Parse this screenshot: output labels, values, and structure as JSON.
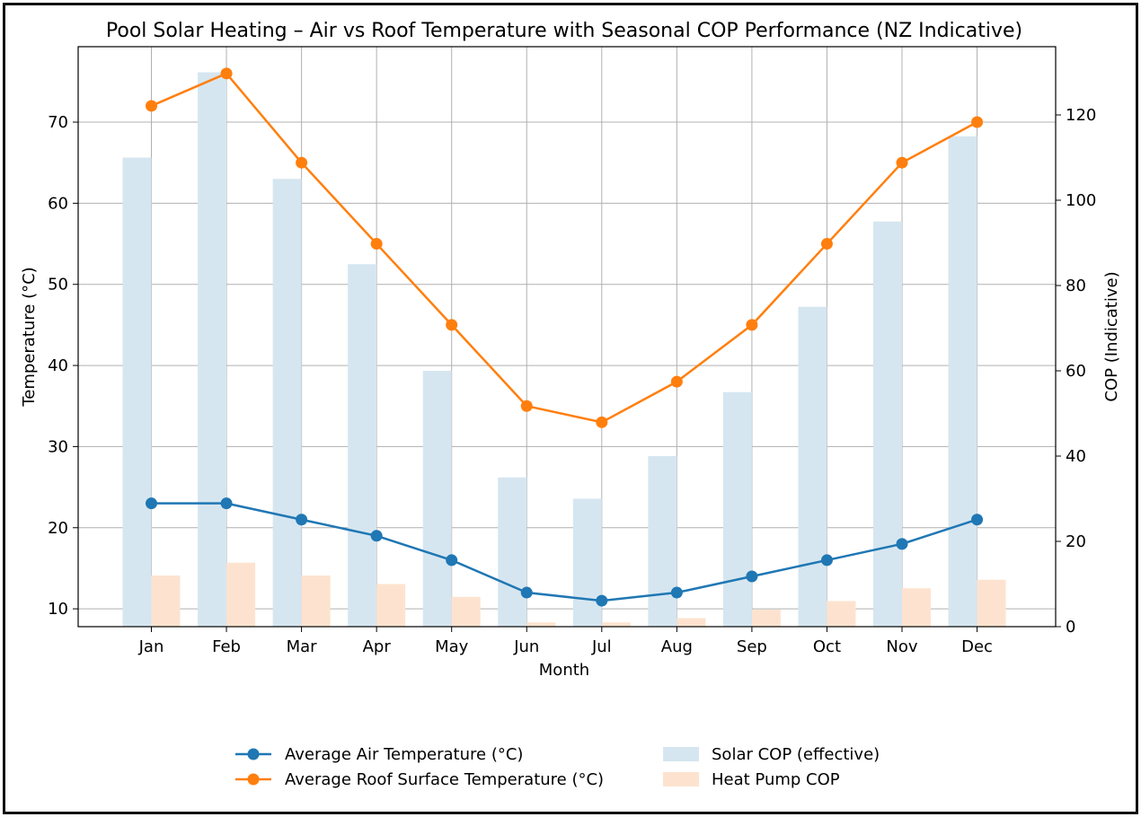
{
  "chart_data": {
    "type": "bar+line",
    "title": "Pool Solar Heating – Air vs Roof Temperature with Seasonal COP Performance (NZ Indicative)",
    "xlabel": "Month",
    "ylabel_left": "Temperature (°C)",
    "ylabel_right": "COP (Indicative)",
    "categories": [
      "Jan",
      "Feb",
      "Mar",
      "Apr",
      "May",
      "Jun",
      "Jul",
      "Aug",
      "Sep",
      "Oct",
      "Nov",
      "Dec"
    ],
    "ylim_left": [
      7.8,
      79.3
    ],
    "ylim_right": [
      0,
      136
    ],
    "yticks_left": [
      10,
      20,
      30,
      40,
      50,
      60,
      70
    ],
    "yticks_right": [
      0,
      20,
      40,
      60,
      80,
      100,
      120
    ],
    "grid": true,
    "legend_position": "bottom-center",
    "lines": [
      {
        "name": "Average Air Temperature (°C)",
        "color": "#1f77b4",
        "axis": "left",
        "values": [
          23,
          23,
          21,
          19,
          16,
          12,
          11,
          12,
          14,
          16,
          18,
          21
        ]
      },
      {
        "name": "Average Roof Surface Temperature (°C)",
        "color": "#ff7f0e",
        "axis": "left",
        "values": [
          72,
          76,
          65,
          55,
          45,
          35,
          33,
          38,
          45,
          55,
          65,
          70
        ]
      }
    ],
    "bars": [
      {
        "name": "Solar COP (effective)",
        "color": "#d6e6f0",
        "axis": "right",
        "values": [
          110,
          130,
          105,
          85,
          60,
          35,
          30,
          40,
          55,
          75,
          95,
          115
        ]
      },
      {
        "name": "Heat Pump COP",
        "color": "#fde3cf",
        "axis": "right",
        "values": [
          12,
          15,
          12,
          10,
          7,
          1,
          1,
          2,
          4,
          6,
          9,
          11
        ]
      }
    ]
  }
}
